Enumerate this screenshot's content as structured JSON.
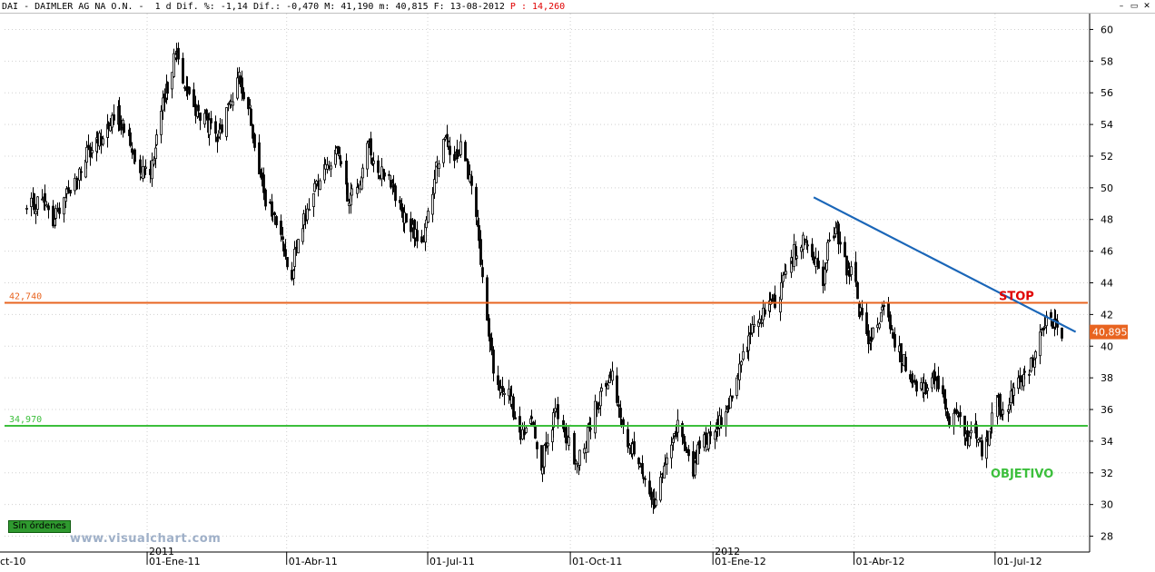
{
  "header": {
    "text": "DAI - DAIMLER AG NA O.N. -  1 d Dif. %: -1,14 Dif.: -0,470 M: 41,190 m: 40,815 F: 13-08-2012 ",
    "p_label": "P : 14,260"
  },
  "window_buttons": [
    {
      "name": "minimize-button",
      "label": "–"
    },
    {
      "name": "restore-button",
      "label": "▭"
    },
    {
      "name": "close-button",
      "label": "✕"
    }
  ],
  "stamp": "Sin órdenes",
  "watermark": "www.visualchart.com",
  "colors": {
    "candles": "#000000",
    "resistance": "#e86420",
    "support": "#3cbf3c",
    "trendline": "#1a66b8",
    "stop_text": "#e00000",
    "objetivo_text": "#3cbf3c",
    "price_tag": "#e86420",
    "grid": "#d0d0d0"
  },
  "chart_data": {
    "type": "candlestick",
    "symbol": "DAI",
    "ylim": [
      27,
      61
    ],
    "yticks": [
      28,
      30,
      32,
      34,
      36,
      38,
      40,
      42,
      44,
      46,
      48,
      50,
      52,
      54,
      56,
      58,
      60
    ],
    "xlabels": [
      "ct-10",
      "01-Ene-11",
      "01-Abr-11",
      "01-Jul-11",
      "01-Oct-11",
      "01-Ene-12",
      "01-Abr-12",
      "01-Jul-12"
    ],
    "year_labels": [
      {
        "text": "2011",
        "at": "01-Ene-11"
      },
      {
        "text": "2012",
        "at": "01-Ene-12"
      }
    ],
    "last_price": "40,895",
    "last_value": 40.895,
    "grid": true,
    "hlines": [
      {
        "label": "42,740",
        "value": 42.74,
        "color": "#e86420"
      },
      {
        "label": "34,970",
        "value": 34.97,
        "color": "#3cbf3c"
      }
    ],
    "trendline": {
      "from": {
        "date": "2012-03-06",
        "value": 49.4
      },
      "to": {
        "date": "2012-08-22",
        "value": 40.9
      }
    },
    "annotations": [
      {
        "text": "STOP",
        "near": 43.2,
        "color": "#e00000"
      },
      {
        "text": "OBJETIVO",
        "near": 32.0,
        "color": "#3cbf3c"
      }
    ],
    "close_path": [
      [
        "2010-10-15",
        48.6
      ],
      [
        "2010-10-25",
        49.3
      ],
      [
        "2010-11-01",
        47.8
      ],
      [
        "2010-11-08",
        49.6
      ],
      [
        "2010-11-15",
        50.3
      ],
      [
        "2010-11-22",
        51.9
      ],
      [
        "2010-11-29",
        52.7
      ],
      [
        "2010-12-06",
        53.9
      ],
      [
        "2010-12-13",
        54.6
      ],
      [
        "2010-12-20",
        53.0
      ],
      [
        "2010-12-27",
        51.4
      ],
      [
        "2011-01-03",
        51.2
      ],
      [
        "2011-01-07",
        53.3
      ],
      [
        "2011-01-12",
        55.6
      ],
      [
        "2011-01-17",
        57.8
      ],
      [
        "2011-01-20",
        58.7
      ],
      [
        "2011-01-25",
        56.6
      ],
      [
        "2011-02-01",
        54.9
      ],
      [
        "2011-02-08",
        54.1
      ],
      [
        "2011-02-15",
        52.9
      ],
      [
        "2011-02-22",
        55.1
      ],
      [
        "2011-03-01",
        56.8
      ],
      [
        "2011-03-07",
        55.4
      ],
      [
        "2011-03-14",
        51.3
      ],
      [
        "2011-03-18",
        49.0
      ],
      [
        "2011-03-24",
        48.1
      ],
      [
        "2011-03-30",
        46.1
      ],
      [
        "2011-04-04",
        44.7
      ],
      [
        "2011-04-08",
        46.5
      ],
      [
        "2011-04-14",
        48.6
      ],
      [
        "2011-04-20",
        50.3
      ],
      [
        "2011-04-27",
        51.6
      ],
      [
        "2011-05-04",
        52.1
      ],
      [
        "2011-05-10",
        49.3
      ],
      [
        "2011-05-16",
        49.9
      ],
      [
        "2011-05-23",
        52.6
      ],
      [
        "2011-05-30",
        51.1
      ],
      [
        "2011-06-06",
        50.9
      ],
      [
        "2011-06-13",
        48.6
      ],
      [
        "2011-06-20",
        47.3
      ],
      [
        "2011-06-27",
        46.7
      ],
      [
        "2011-07-01",
        48.1
      ],
      [
        "2011-07-06",
        51.3
      ],
      [
        "2011-07-12",
        52.9
      ],
      [
        "2011-07-18",
        51.6
      ],
      [
        "2011-07-22",
        52.8
      ],
      [
        "2011-07-27",
        51.1
      ],
      [
        "2011-08-01",
        48.1
      ],
      [
        "2011-08-04",
        45.2
      ],
      [
        "2011-08-08",
        41.4
      ],
      [
        "2011-08-12",
        38.6
      ],
      [
        "2011-08-17",
        36.8
      ],
      [
        "2011-08-22",
        37.6
      ],
      [
        "2011-08-26",
        35.0
      ],
      [
        "2011-08-31",
        34.3
      ],
      [
        "2011-09-06",
        35.6
      ],
      [
        "2011-09-12",
        32.5
      ],
      [
        "2011-09-16",
        33.9
      ],
      [
        "2011-09-21",
        35.9
      ],
      [
        "2011-09-26",
        34.6
      ],
      [
        "2011-09-30",
        33.7
      ],
      [
        "2011-10-05",
        32.6
      ],
      [
        "2011-10-10",
        33.5
      ],
      [
        "2011-10-14",
        35.3
      ],
      [
        "2011-10-19",
        36.6
      ],
      [
        "2011-10-24",
        37.8
      ],
      [
        "2011-10-28",
        38.5
      ],
      [
        "2011-11-02",
        35.6
      ],
      [
        "2011-11-08",
        33.5
      ],
      [
        "2011-11-14",
        33.0
      ],
      [
        "2011-11-21",
        30.6
      ],
      [
        "2011-11-25",
        29.8
      ],
      [
        "2011-11-30",
        32.1
      ],
      [
        "2011-12-05",
        34.3
      ],
      [
        "2011-12-09",
        34.9
      ],
      [
        "2011-12-14",
        33.3
      ],
      [
        "2011-12-19",
        32.1
      ],
      [
        "2011-12-23",
        33.6
      ],
      [
        "2011-12-29",
        34.2
      ],
      [
        "2012-01-05",
        35.1
      ],
      [
        "2012-01-10",
        36.2
      ],
      [
        "2012-01-16",
        37.6
      ],
      [
        "2012-01-20",
        39.4
      ],
      [
        "2012-01-26",
        40.9
      ],
      [
        "2012-02-01",
        42.0
      ],
      [
        "2012-02-07",
        42.6
      ],
      [
        "2012-02-13",
        43.3
      ],
      [
        "2012-02-17",
        44.8
      ],
      [
        "2012-02-23",
        46.1
      ],
      [
        "2012-02-28",
        46.8
      ],
      [
        "2012-03-05",
        45.6
      ],
      [
        "2012-03-12",
        43.6
      ],
      [
        "2012-03-16",
        46.9
      ],
      [
        "2012-03-21",
        47.4
      ],
      [
        "2012-03-26",
        45.1
      ],
      [
        "2012-04-02",
        44.5
      ],
      [
        "2012-04-04",
        42.3
      ],
      [
        "2012-04-10",
        40.4
      ],
      [
        "2012-04-16",
        41.2
      ],
      [
        "2012-04-20",
        42.3
      ],
      [
        "2012-04-26",
        40.6
      ],
      [
        "2012-05-02",
        39.2
      ],
      [
        "2012-05-08",
        38.1
      ],
      [
        "2012-05-15",
        37.1
      ],
      [
        "2012-05-22",
        38.3
      ],
      [
        "2012-05-28",
        37.0
      ],
      [
        "2012-06-01",
        34.9
      ],
      [
        "2012-06-06",
        35.6
      ],
      [
        "2012-06-12",
        34.3
      ],
      [
        "2012-06-18",
        35.1
      ],
      [
        "2012-06-22",
        33.6
      ],
      [
        "2012-06-27",
        34.6
      ],
      [
        "2012-07-02",
        36.5
      ],
      [
        "2012-07-06",
        35.6
      ],
      [
        "2012-07-12",
        36.9
      ],
      [
        "2012-07-18",
        38.1
      ],
      [
        "2012-07-24",
        38.9
      ],
      [
        "2012-07-30",
        40.6
      ],
      [
        "2012-08-03",
        41.6
      ],
      [
        "2012-08-09",
        41.4
      ],
      [
        "2012-08-13",
        40.9
      ]
    ]
  }
}
